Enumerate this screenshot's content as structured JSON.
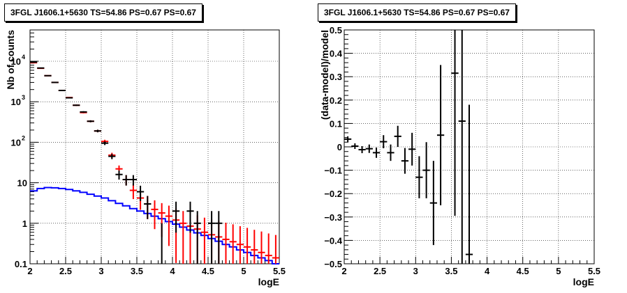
{
  "chart_data": [
    {
      "type": "histogram",
      "title": "3FGL J1606.1+5630 TS=54.86 PS=0.67 PS=0.67",
      "xlabel": "logE",
      "ylabel": "Nb of counts",
      "xlim": [
        2,
        5.5
      ],
      "ylim": [
        0.1,
        60000
      ],
      "yscale": "log",
      "grid": true,
      "x_ticks": [
        "2",
        "2.5",
        "3",
        "3.5",
        "4",
        "4.5",
        "5",
        "5.5"
      ],
      "y_ticks": [
        "0.1",
        "1",
        "10",
        "10^2",
        "10^3",
        "10^4"
      ],
      "colors": {
        "data": "#000000",
        "total_model": "#ff0000",
        "source_model": "#0000ff"
      },
      "series": [
        {
          "role": "data",
          "bins": [
            2.05,
            2.15,
            2.25,
            2.35,
            2.45,
            2.55,
            2.65,
            2.75,
            2.85,
            2.95,
            3.05,
            3.15,
            3.25,
            3.35,
            3.45,
            3.55,
            3.65,
            3.75,
            3.85,
            3.95,
            4.05,
            4.15,
            4.25,
            4.35,
            4.45,
            4.55,
            4.65
          ],
          "values": [
            9500,
            6800,
            4400,
            3000,
            1900,
            1250,
            820,
            560,
            330,
            190,
            95,
            45,
            16,
            12,
            12,
            6,
            3,
            0,
            0,
            0,
            2,
            0,
            2,
            1,
            0,
            1,
            1
          ]
        },
        {
          "role": "total_model",
          "bins": [
            2.05,
            2.15,
            2.25,
            2.35,
            2.45,
            2.55,
            2.65,
            2.75,
            2.85,
            2.95,
            3.05,
            3.15,
            3.25,
            3.35,
            3.45,
            3.55,
            3.65,
            3.75,
            3.85,
            3.95,
            4.05,
            4.15,
            4.25,
            4.35,
            4.45,
            4.55,
            4.65,
            4.75,
            4.85,
            4.95,
            5.05,
            5.15,
            5.25,
            5.35,
            5.45
          ],
          "values": [
            9200,
            6700,
            4400,
            3000,
            1900,
            1270,
            820,
            540,
            330,
            190,
            105,
            48,
            22,
            12,
            6.5,
            4.2,
            3,
            2.2,
            1.8,
            1.5,
            1.2,
            1.0,
            0.85,
            0.72,
            0.6,
            0.52,
            0.46,
            0.4,
            0.35,
            0.3,
            0.26,
            0.22,
            0.19,
            0.16,
            0.14
          ]
        },
        {
          "role": "source_model",
          "bins": [
            2.0,
            2.1,
            2.2,
            2.3,
            2.4,
            2.5,
            2.6,
            2.7,
            2.8,
            2.9,
            3.0,
            3.1,
            3.2,
            3.3,
            3.4,
            3.5,
            3.6,
            3.7,
            3.8,
            3.9,
            4.0,
            4.1,
            4.2,
            4.3,
            4.4,
            4.5,
            4.6,
            4.7,
            4.8,
            4.9,
            5.0,
            5.1,
            5.2,
            5.3,
            5.4,
            5.5
          ],
          "values": [
            6.3,
            7.2,
            7.6,
            7.5,
            7.2,
            6.8,
            6.3,
            5.8,
            5.2,
            4.7,
            4.2,
            3.6,
            3.1,
            2.7,
            2.3,
            2.0,
            1.75,
            1.5,
            1.3,
            1.1,
            0.95,
            0.8,
            0.68,
            0.58,
            0.5,
            0.42,
            0.36,
            0.3,
            0.26,
            0.22,
            0.19,
            0.16,
            0.14,
            0.12,
            0.1
          ]
        }
      ]
    },
    {
      "type": "scatter",
      "title": "3FGL J1606.1+5630 TS=54.86 PS=0.67 PS=0.67",
      "xlabel": "logE",
      "ylabel": "(data-model)/model",
      "xlim": [
        2,
        5.5
      ],
      "ylim": [
        -0.5,
        0.5
      ],
      "grid": true,
      "x_ticks": [
        "2",
        "2.5",
        "3",
        "3.5",
        "4",
        "4.5",
        "5",
        "5.5"
      ],
      "y_ticks": [
        "-0.5",
        "-0.4",
        "-0.3",
        "-0.2",
        "-0.1",
        "0",
        "0.1",
        "0.2",
        "0.3",
        "0.4",
        "0.5"
      ],
      "points": [
        {
          "x": 2.05,
          "y": 0.033,
          "err": 0.012
        },
        {
          "x": 2.15,
          "y": 0.003,
          "err": 0.012
        },
        {
          "x": 2.25,
          "y": -0.012,
          "err": 0.015
        },
        {
          "x": 2.35,
          "y": -0.008,
          "err": 0.018
        },
        {
          "x": 2.45,
          "y": -0.025,
          "err": 0.022
        },
        {
          "x": 2.55,
          "y": 0.022,
          "err": 0.028
        },
        {
          "x": 2.65,
          "y": -0.025,
          "err": 0.035
        },
        {
          "x": 2.75,
          "y": 0.045,
          "err": 0.045
        },
        {
          "x": 2.85,
          "y": -0.06,
          "err": 0.055
        },
        {
          "x": 2.95,
          "y": -0.01,
          "err": 0.07
        },
        {
          "x": 3.05,
          "y": -0.13,
          "err": 0.09
        },
        {
          "x": 3.15,
          "y": -0.1,
          "err": 0.12
        },
        {
          "x": 3.25,
          "y": -0.24,
          "err": 0.18
        },
        {
          "x": 3.35,
          "y": 0.05,
          "err": 0.3
        },
        {
          "x": 3.55,
          "y": 0.315,
          "err": 0.61
        },
        {
          "x": 3.65,
          "y": 0.11,
          "err": 0.75
        },
        {
          "x": 3.75,
          "y": -0.46,
          "err": 0.64
        }
      ]
    }
  ]
}
